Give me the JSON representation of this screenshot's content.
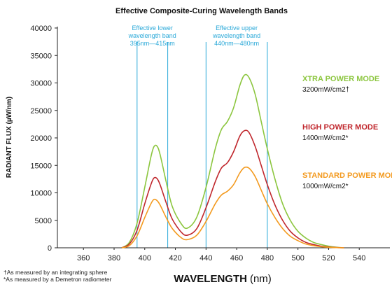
{
  "chart_data": {
    "type": "line",
    "title": "Effective Composite-Curing Wavelength Bands",
    "ylabel": "RADIANT FLUX (µW/nm)",
    "xlabel_main": "WAVELENGTH",
    "xlabel_unit": "(nm)",
    "xlim": [
      343,
      560
    ],
    "ylim": [
      0,
      40000
    ],
    "x_ticks": [
      360,
      380,
      400,
      420,
      440,
      460,
      480,
      500,
      520,
      540
    ],
    "y_ticks": [
      0,
      5000,
      10000,
      15000,
      20000,
      25000,
      30000,
      35000,
      40000
    ],
    "grid": false,
    "bands": [
      {
        "lines": [
          "Effective lower",
          "wavelength band",
          "395nm—415nm"
        ],
        "range": [
          395,
          415
        ]
      },
      {
        "lines": [
          "Effective upper",
          "wavelength band",
          "440nm—480nm"
        ],
        "range": [
          440,
          480
        ]
      }
    ],
    "band_color": "#29a8d8",
    "series": [
      {
        "name": "XTRA POWER MODE",
        "power": "3200mW/cm2†",
        "color": "#8cc63f",
        "x": [
          385,
          390,
          395,
          400,
          404,
          406,
          408,
          410,
          414,
          418,
          424,
          428,
          434,
          440,
          446,
          450,
          454,
          458,
          462,
          465,
          468,
          472,
          476,
          480,
          485,
          490,
          495,
          500,
          505,
          510,
          515,
          520,
          525,
          530
        ],
        "y": [
          0,
          1000,
          4500,
          11000,
          16500,
          18400,
          18500,
          17000,
          12000,
          7500,
          4300,
          3600,
          5600,
          11000,
          18000,
          21500,
          23000,
          25500,
          29500,
          31400,
          31000,
          28000,
          23000,
          18000,
          12500,
          8000,
          5000,
          3000,
          1800,
          1000,
          600,
          300,
          100,
          0
        ]
      },
      {
        "name": "HIGH POWER MODE",
        "power": "1400mW/cm2*",
        "color": "#c0272d",
        "x": [
          385,
          390,
          395,
          400,
          404,
          406,
          408,
          410,
          414,
          418,
          424,
          428,
          434,
          440,
          446,
          450,
          454,
          458,
          462,
          465,
          468,
          472,
          476,
          480,
          485,
          490,
          495,
          500,
          505,
          510,
          515,
          520,
          525,
          530
        ],
        "y": [
          0,
          700,
          3200,
          8000,
          11500,
          12700,
          12600,
          11500,
          8200,
          5200,
          2800,
          2300,
          3500,
          7300,
          12000,
          14500,
          15500,
          17500,
          20300,
          21300,
          21000,
          18500,
          15000,
          11500,
          7800,
          5000,
          3000,
          1800,
          1000,
          600,
          300,
          150,
          50,
          0
        ]
      },
      {
        "name": "STANDARD POWER MODE",
        "power": "1000mW/cm2*",
        "color": "#f39a1f",
        "x": [
          385,
          390,
          395,
          400,
          404,
          406,
          408,
          410,
          414,
          418,
          424,
          428,
          434,
          440,
          446,
          450,
          454,
          458,
          462,
          465,
          468,
          472,
          476,
          480,
          485,
          490,
          495,
          500,
          505,
          510,
          515,
          520,
          525,
          530
        ],
        "y": [
          0,
          400,
          2200,
          5500,
          8000,
          8800,
          8600,
          7800,
          5500,
          3500,
          1800,
          1500,
          2300,
          4800,
          8000,
          9600,
          10300,
          11500,
          13600,
          14600,
          14500,
          13000,
          10500,
          8000,
          5500,
          3500,
          2100,
          1300,
          700,
          400,
          200,
          100,
          30,
          0
        ]
      }
    ]
  },
  "footnotes": {
    "dagger": "†As measured by an integrating sphere",
    "star": "*As measured by a Demetron radiometer"
  }
}
